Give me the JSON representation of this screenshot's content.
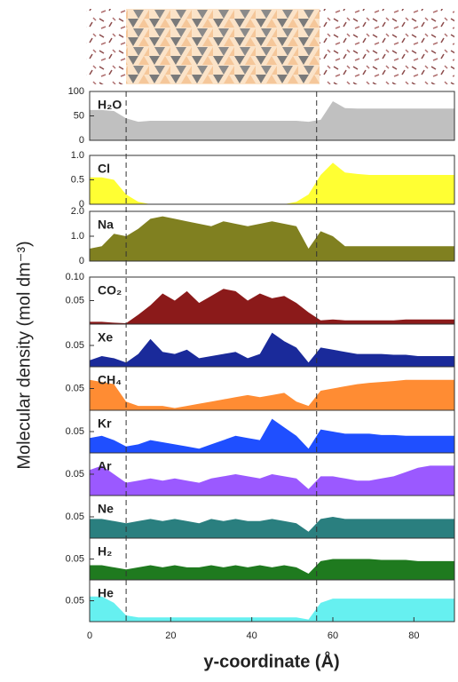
{
  "chart_data": [
    {
      "type": "area",
      "label": "H₂O",
      "color": "#c0c0c0",
      "ylabel": "Molecular density (mol dm⁻³)",
      "vlines": [
        9,
        56
      ],
      "x": [
        0,
        3,
        6,
        9,
        12,
        15,
        18,
        21,
        24,
        27,
        30,
        33,
        36,
        39,
        42,
        45,
        48,
        51,
        54,
        57,
        60,
        63,
        66,
        69,
        72,
        75,
        78,
        81,
        84,
        87,
        90
      ],
      "values": [
        62,
        62,
        60,
        45,
        38,
        40,
        40,
        40,
        40,
        40,
        40,
        40,
        40,
        40,
        40,
        40,
        40,
        40,
        38,
        42,
        80,
        66,
        65,
        65,
        65,
        65,
        65,
        65,
        65,
        65,
        65
      ],
      "xlim": [
        0,
        90
      ],
      "ylim": [
        0,
        100
      ],
      "yticks": [
        0,
        50,
        100
      ]
    },
    {
      "type": "area",
      "label": "Cl",
      "color": "#ffff33",
      "x": [
        0,
        3,
        6,
        9,
        12,
        15,
        18,
        21,
        24,
        27,
        30,
        33,
        36,
        39,
        42,
        45,
        48,
        51,
        54,
        57,
        60,
        63,
        66,
        69,
        72,
        75,
        78,
        81,
        84,
        87,
        90
      ],
      "values": [
        0.55,
        0.55,
        0.5,
        0.2,
        0.05,
        0,
        0,
        0,
        0,
        0,
        0,
        0,
        0,
        0,
        0,
        0,
        0,
        0.05,
        0.2,
        0.6,
        0.85,
        0.65,
        0.62,
        0.6,
        0.6,
        0.6,
        0.6,
        0.6,
        0.6,
        0.6,
        0.6
      ],
      "xlim": [
        0,
        90
      ],
      "ylim": [
        0,
        1
      ],
      "yticks": [
        0,
        0.5,
        {
          "value": 1,
          "label": "1.0"
        }
      ]
    },
    {
      "type": "area",
      "label": "Na",
      "color": "#808020",
      "x": [
        0,
        3,
        6,
        9,
        12,
        15,
        18,
        21,
        24,
        27,
        30,
        33,
        36,
        39,
        42,
        45,
        48,
        51,
        54,
        57,
        60,
        63,
        66,
        69,
        72,
        75,
        78,
        81,
        84,
        87,
        90
      ],
      "values": [
        0.5,
        0.6,
        1.1,
        1.0,
        1.3,
        1.7,
        1.8,
        1.7,
        1.6,
        1.5,
        1.4,
        1.6,
        1.5,
        1.4,
        1.5,
        1.6,
        1.5,
        1.4,
        0.5,
        1.2,
        1.0,
        0.6,
        0.6,
        0.6,
        0.6,
        0.6,
        0.6,
        0.6,
        0.6,
        0.6,
        0.6
      ],
      "xlim": [
        0,
        90
      ],
      "ylim": [
        0,
        2
      ],
      "yticks": [
        0,
        {
          "value": 1,
          "label": "1.0"
        },
        {
          "value": 2,
          "label": "2.0"
        }
      ]
    },
    {
      "type": "area",
      "label": "CO₂",
      "color": "#8b1a1a",
      "x": [
        0,
        3,
        6,
        9,
        12,
        15,
        18,
        21,
        24,
        27,
        30,
        33,
        36,
        39,
        42,
        45,
        48,
        51,
        54,
        57,
        60,
        63,
        66,
        69,
        72,
        75,
        78,
        81,
        84,
        87,
        90
      ],
      "values": [
        0.005,
        0.005,
        0.003,
        0.002,
        0.02,
        0.04,
        0.065,
        0.05,
        0.07,
        0.045,
        0.06,
        0.075,
        0.07,
        0.05,
        0.065,
        0.055,
        0.06,
        0.045,
        0.025,
        0.008,
        0.01,
        0.008,
        0.008,
        0.008,
        0.008,
        0.008,
        0.01,
        0.01,
        0.01,
        0.01,
        0.01
      ],
      "xlim": [
        0,
        90
      ],
      "ylim": [
        0,
        0.1
      ],
      "yticks": [
        0.05,
        {
          "value": 0.1,
          "label": "0.10"
        }
      ]
    },
    {
      "type": "area",
      "label": "Xe",
      "color": "#1a2a9a",
      "x": [
        0,
        3,
        6,
        9,
        12,
        15,
        18,
        21,
        24,
        27,
        30,
        33,
        36,
        39,
        42,
        45,
        48,
        51,
        54,
        57,
        60,
        63,
        66,
        69,
        72,
        75,
        78,
        81,
        84,
        87,
        90
      ],
      "values": [
        0.015,
        0.025,
        0.02,
        0.01,
        0.03,
        0.065,
        0.035,
        0.03,
        0.04,
        0.02,
        0.025,
        0.03,
        0.035,
        0.02,
        0.03,
        0.08,
        0.06,
        0.045,
        0.01,
        0.045,
        0.04,
        0.035,
        0.03,
        0.03,
        0.03,
        0.028,
        0.028,
        0.025,
        0.025,
        0.025,
        0.025
      ],
      "xlim": [
        0,
        90
      ],
      "ylim": [
        0,
        0.1
      ],
      "yticks": [
        0.05
      ]
    },
    {
      "type": "area",
      "label": "CH₄",
      "color": "#ff8c33",
      "x": [
        0,
        3,
        6,
        9,
        12,
        15,
        18,
        21,
        24,
        27,
        30,
        33,
        36,
        39,
        42,
        45,
        48,
        51,
        54,
        57,
        60,
        63,
        66,
        69,
        72,
        75,
        78,
        81,
        84,
        87,
        90
      ],
      "values": [
        0.07,
        0.065,
        0.06,
        0.02,
        0.01,
        0.01,
        0.01,
        0.005,
        0.01,
        0.015,
        0.02,
        0.025,
        0.03,
        0.035,
        0.03,
        0.035,
        0.04,
        0.02,
        0.01,
        0.045,
        0.05,
        0.055,
        0.06,
        0.063,
        0.065,
        0.067,
        0.07,
        0.07,
        0.07,
        0.07,
        0.07
      ],
      "xlim": [
        0,
        90
      ],
      "ylim": [
        0,
        0.1
      ],
      "yticks": [
        0.05
      ]
    },
    {
      "type": "area",
      "label": "Kr",
      "color": "#1f4fff",
      "x": [
        0,
        3,
        6,
        9,
        12,
        15,
        18,
        21,
        24,
        27,
        30,
        33,
        36,
        39,
        42,
        45,
        48,
        51,
        54,
        57,
        60,
        63,
        66,
        69,
        72,
        75,
        78,
        81,
        84,
        87,
        90
      ],
      "values": [
        0.035,
        0.04,
        0.03,
        0.015,
        0.02,
        0.03,
        0.025,
        0.02,
        0.015,
        0.01,
        0.02,
        0.03,
        0.04,
        0.035,
        0.03,
        0.08,
        0.06,
        0.04,
        0.01,
        0.055,
        0.05,
        0.045,
        0.045,
        0.045,
        0.042,
        0.042,
        0.04,
        0.04,
        0.04,
        0.04,
        0.04
      ],
      "xlim": [
        0,
        90
      ],
      "ylim": [
        0,
        0.1
      ],
      "yticks": [
        0.05
      ]
    },
    {
      "type": "area",
      "label": "Ar",
      "color": "#9b59ff",
      "x": [
        0,
        3,
        6,
        9,
        12,
        15,
        18,
        21,
        24,
        27,
        30,
        33,
        36,
        39,
        42,
        45,
        48,
        51,
        54,
        57,
        60,
        63,
        66,
        69,
        72,
        75,
        78,
        81,
        84,
        87,
        90
      ],
      "values": [
        0.06,
        0.07,
        0.05,
        0.03,
        0.035,
        0.04,
        0.035,
        0.04,
        0.035,
        0.03,
        0.04,
        0.045,
        0.05,
        0.045,
        0.04,
        0.05,
        0.045,
        0.04,
        0.015,
        0.045,
        0.045,
        0.04,
        0.035,
        0.035,
        0.04,
        0.045,
        0.055,
        0.065,
        0.07,
        0.07,
        0.07
      ],
      "xlim": [
        0,
        90
      ],
      "ylim": [
        0,
        0.1
      ],
      "yticks": [
        0.05
      ]
    },
    {
      "type": "area",
      "label": "Ne",
      "color": "#2a7f7f",
      "x": [
        0,
        3,
        6,
        9,
        12,
        15,
        18,
        21,
        24,
        27,
        30,
        33,
        36,
        39,
        42,
        45,
        48,
        51,
        54,
        57,
        60,
        63,
        66,
        69,
        72,
        75,
        78,
        81,
        84,
        87,
        90
      ],
      "values": [
        0.045,
        0.045,
        0.04,
        0.035,
        0.04,
        0.045,
        0.04,
        0.045,
        0.04,
        0.035,
        0.045,
        0.04,
        0.045,
        0.04,
        0.04,
        0.045,
        0.04,
        0.035,
        0.015,
        0.045,
        0.05,
        0.045,
        0.045,
        0.045,
        0.045,
        0.045,
        0.045,
        0.045,
        0.045,
        0.045,
        0.045
      ],
      "xlim": [
        0,
        90
      ],
      "ylim": [
        0,
        0.1
      ],
      "yticks": [
        0.05
      ]
    },
    {
      "type": "area",
      "label": "H₂",
      "color": "#1f7a1f",
      "x": [
        0,
        3,
        6,
        9,
        12,
        15,
        18,
        21,
        24,
        27,
        30,
        33,
        36,
        39,
        42,
        45,
        48,
        51,
        54,
        57,
        60,
        63,
        66,
        69,
        72,
        75,
        78,
        81,
        84,
        87,
        90
      ],
      "values": [
        0.035,
        0.035,
        0.03,
        0.025,
        0.03,
        0.035,
        0.03,
        0.035,
        0.03,
        0.03,
        0.035,
        0.03,
        0.035,
        0.03,
        0.035,
        0.03,
        0.035,
        0.03,
        0.015,
        0.045,
        0.05,
        0.05,
        0.05,
        0.05,
        0.048,
        0.048,
        0.048,
        0.045,
        0.045,
        0.045,
        0.045
      ],
      "xlim": [
        0,
        90
      ],
      "ylim": [
        0,
        0.1
      ],
      "yticks": [
        0.05
      ]
    },
    {
      "type": "area",
      "label": "He",
      "color": "#66f0f0",
      "xlabel": "y-coordinate (Å)",
      "x": [
        0,
        3,
        6,
        9,
        12,
        15,
        18,
        21,
        24,
        27,
        30,
        33,
        36,
        39,
        42,
        45,
        48,
        51,
        54,
        57,
        60,
        63,
        66,
        69,
        72,
        75,
        78,
        81,
        84,
        87,
        90
      ],
      "values": [
        0.06,
        0.06,
        0.045,
        0.015,
        0.01,
        0.01,
        0.01,
        0.01,
        0.01,
        0.01,
        0.01,
        0.01,
        0.01,
        0.01,
        0.01,
        0.01,
        0.01,
        0.01,
        0.005,
        0.045,
        0.055,
        0.055,
        0.055,
        0.055,
        0.055,
        0.055,
        0.055,
        0.055,
        0.055,
        0.055,
        0.055
      ],
      "xlim": [
        0,
        90
      ],
      "ylim": [
        0,
        0.1
      ],
      "yticks": [
        0.05
      ],
      "xticks": [
        0,
        20,
        40,
        60,
        80
      ]
    }
  ]
}
